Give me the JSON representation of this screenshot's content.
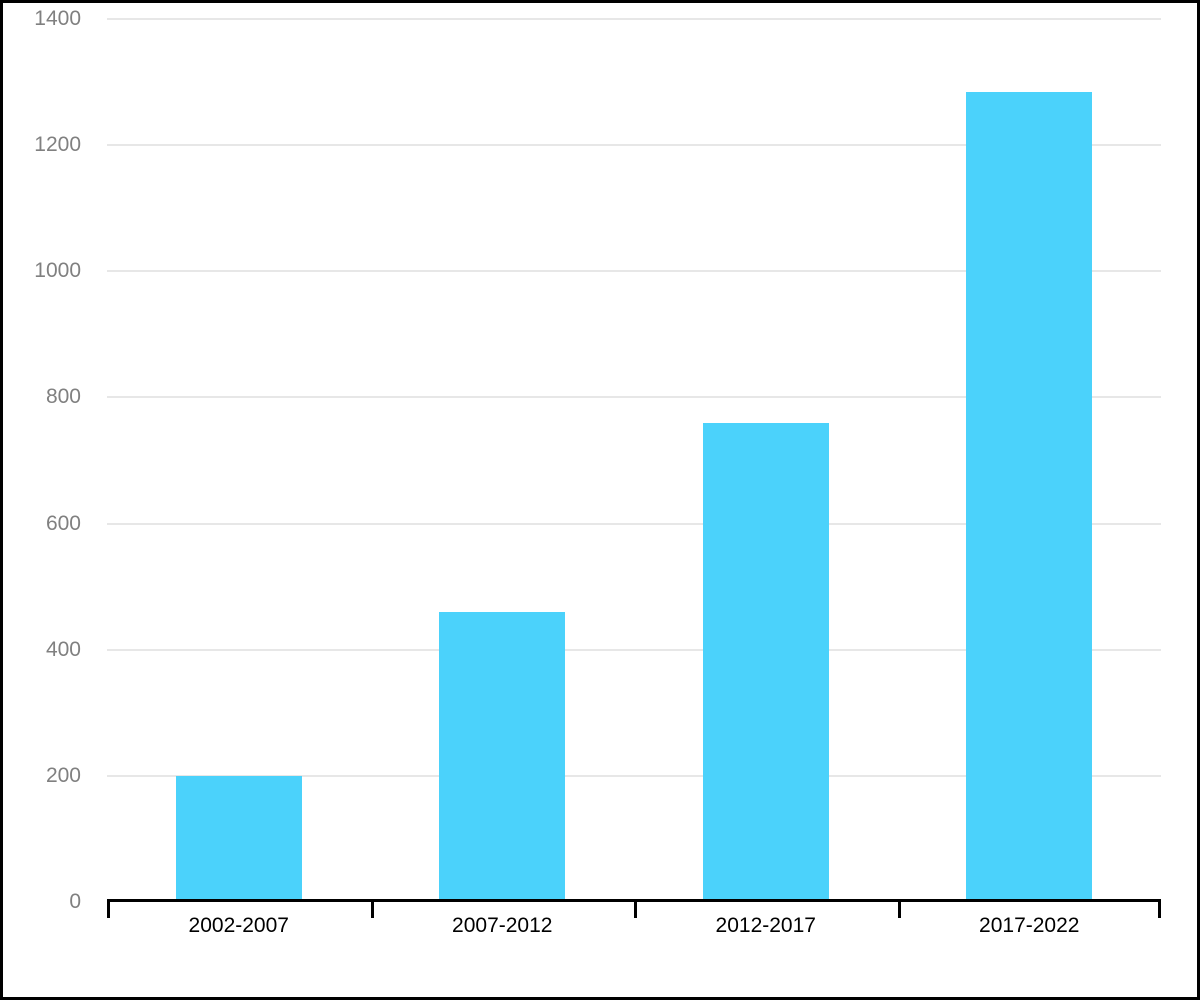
{
  "chart_data": {
    "type": "bar",
    "title": "",
    "xlabel": "",
    "ylabel": "",
    "categories": [
      "2002-2007",
      "2007-2012",
      "2012-2017",
      "2017-2022"
    ],
    "values": [
      200,
      460,
      760,
      1285
    ],
    "ylim": [
      0,
      1400
    ],
    "ytick_step": 200,
    "ytick_labels": [
      "0",
      "200",
      "400",
      "600",
      "800",
      "1000",
      "1200",
      "1400"
    ],
    "grid": true,
    "legend": false,
    "colors": {
      "bar": "#4BD2FB",
      "gridline": "#E7E7E7",
      "axis": "#000000",
      "ytick_label": "#808080",
      "xtick_label": "#000000",
      "background": "#FFFFFF",
      "border": "#000000"
    },
    "layout_hints": {
      "legend_position": "none",
      "bar_width_ratio": 0.478,
      "gridlines_horizontal_only": true
    }
  }
}
